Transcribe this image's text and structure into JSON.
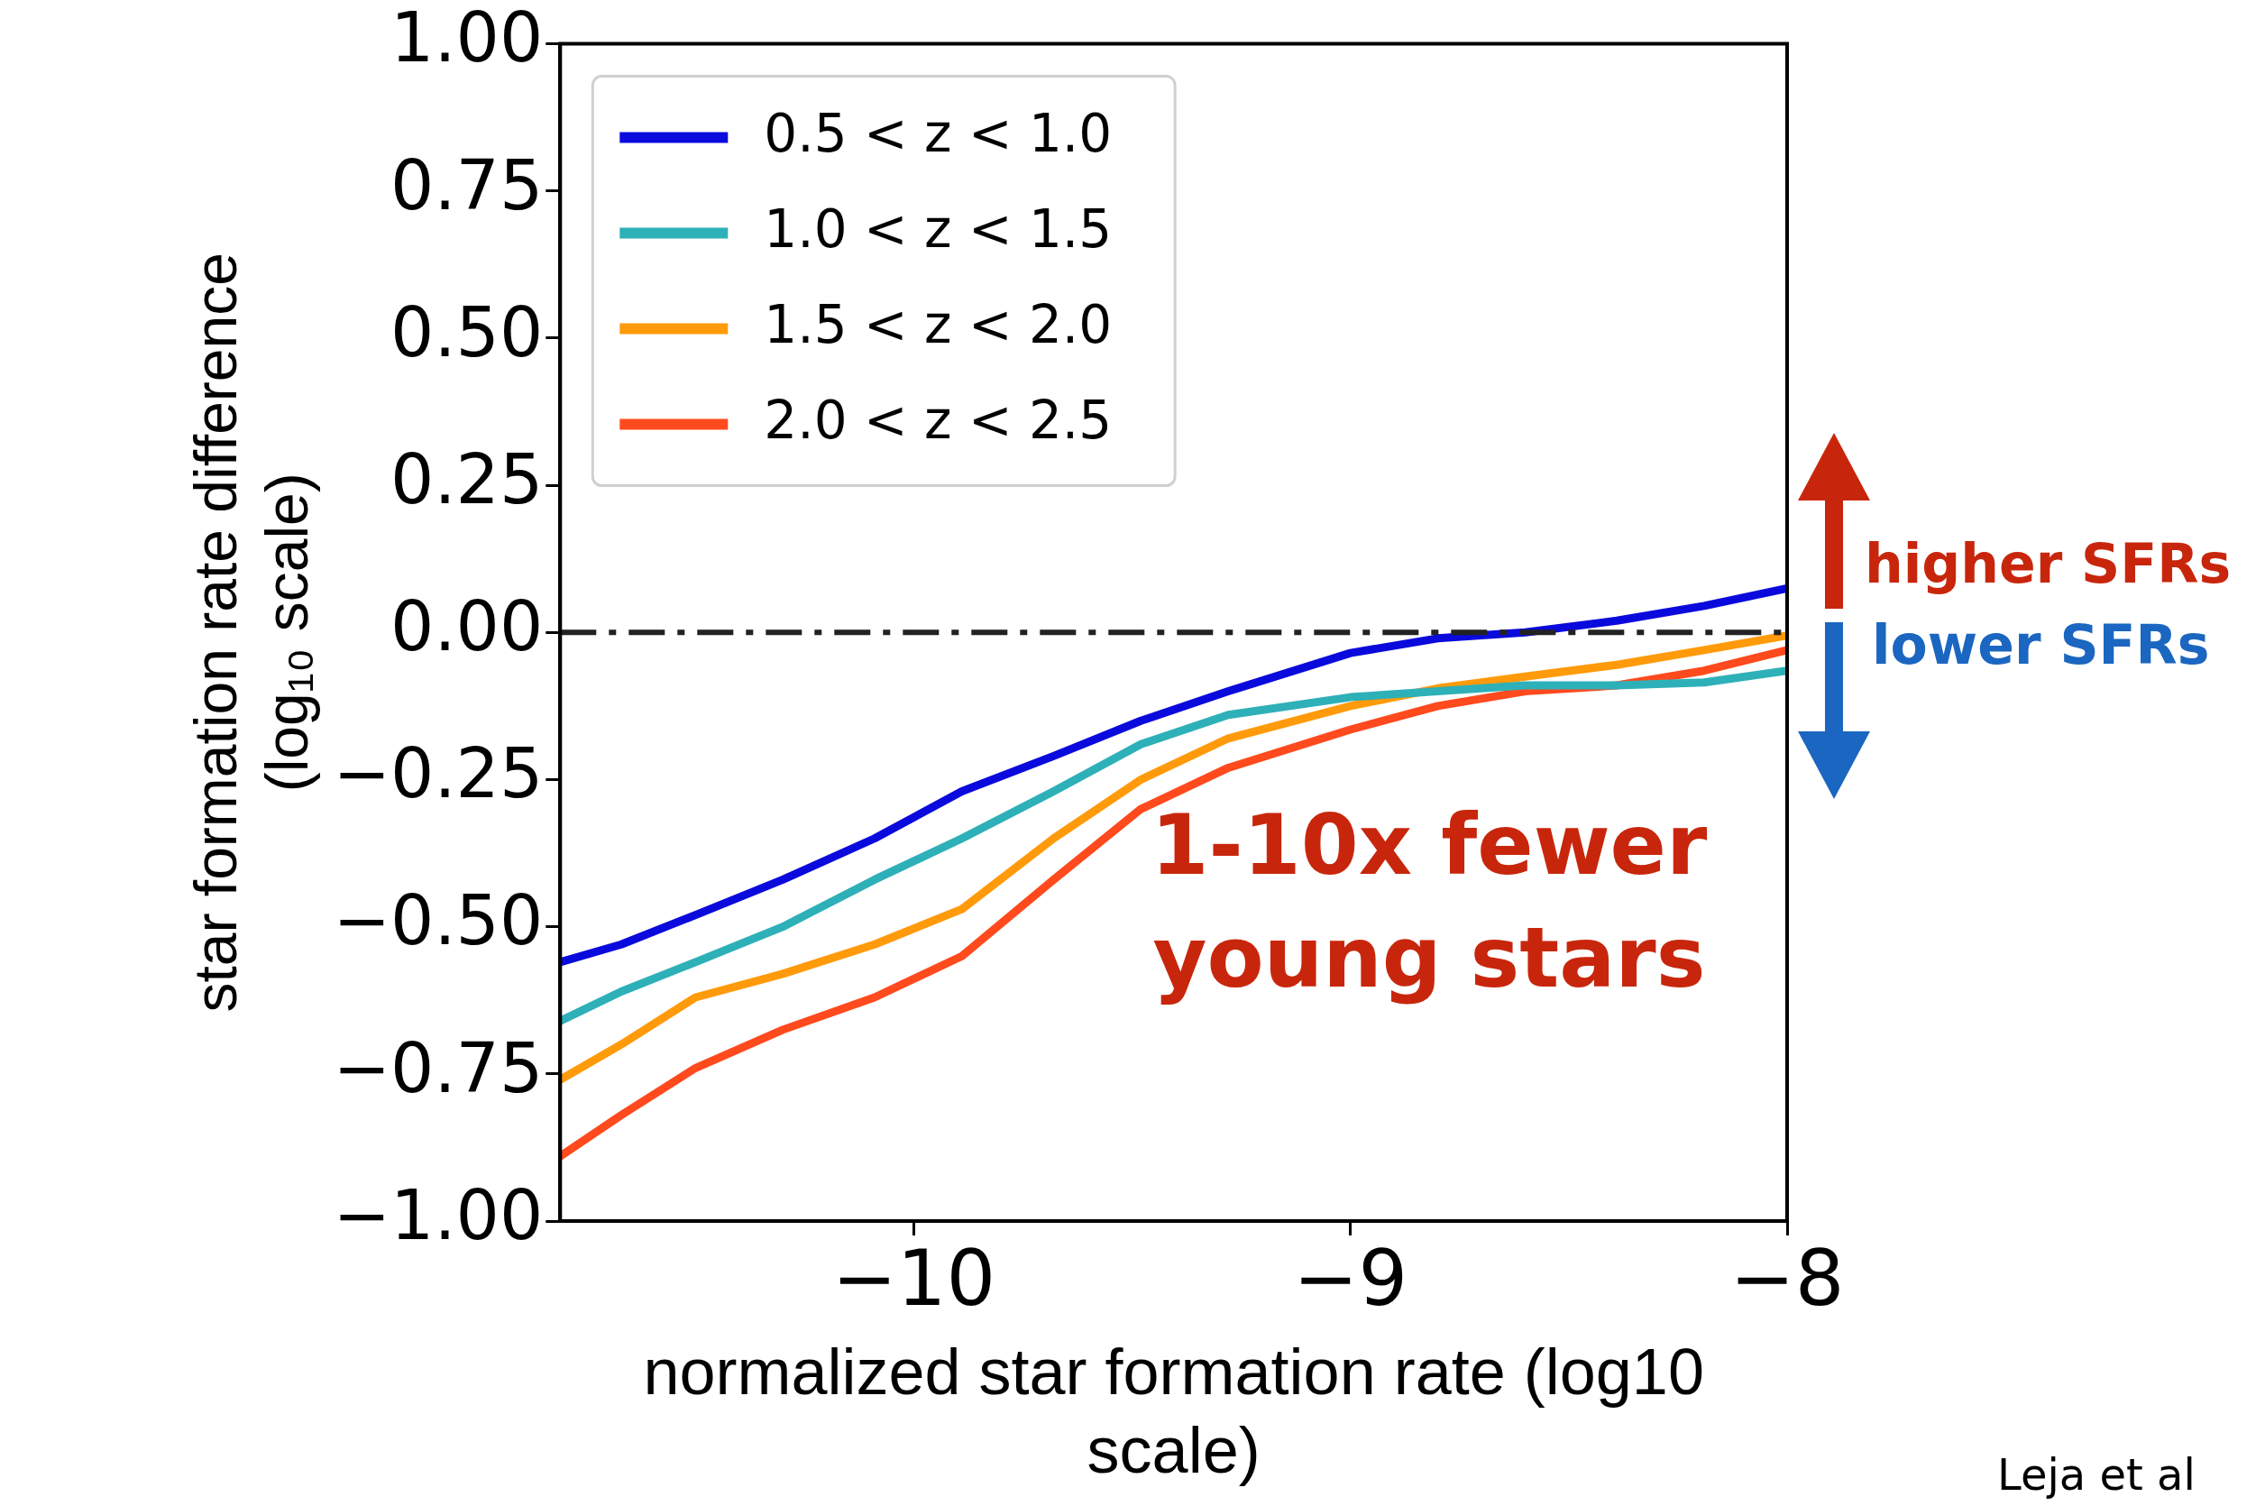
{
  "chart_data": {
    "type": "line",
    "xlabel": "normalized star formation rate (log10 scale)",
    "ylabel": "star formation rate difference (log₁₀ scale)",
    "x": [
      -10.81,
      -10.67,
      -10.5,
      -10.3,
      -10.09,
      -9.89,
      -9.68,
      -9.48,
      -9.28,
      -9,
      -8.8,
      -8.6,
      -8.39,
      -8.19,
      -8
    ],
    "series": [
      {
        "name": "0.5 < z < 1.0",
        "color": "#0a0adc",
        "values": [
          -0.56,
          -0.53,
          -0.48,
          -0.42,
          -0.35,
          -0.27,
          -0.21,
          -0.15,
          -0.1,
          -0.035,
          -0.01,
          0.0,
          0.02,
          0.045,
          0.075
        ]
      },
      {
        "name": "1.0 < z < 1.5",
        "color": "#2eb0b8",
        "values": [
          -0.66,
          -0.61,
          -0.56,
          -0.5,
          -0.42,
          -0.35,
          -0.27,
          -0.19,
          -0.14,
          -0.11,
          -0.1,
          -0.09,
          -0.09,
          -0.085,
          -0.065
        ]
      },
      {
        "name": "1.5 < z < 2.0",
        "color": "#ff9a0a",
        "values": [
          -0.76,
          -0.7,
          -0.62,
          -0.58,
          -0.53,
          -0.47,
          -0.35,
          -0.25,
          -0.18,
          -0.125,
          -0.095,
          -0.075,
          -0.055,
          -0.03,
          -0.005
        ]
      },
      {
        "name": "2.0 < z < 2.5",
        "color": "#ff4a1e",
        "values": [
          -0.89,
          -0.82,
          -0.74,
          -0.675,
          -0.62,
          -0.55,
          -0.42,
          -0.3,
          -0.23,
          -0.165,
          -0.125,
          -0.1,
          -0.09,
          -0.065,
          -0.03
        ]
      }
    ],
    "xlim": [
      -10.81,
      -8
    ],
    "xticks": [
      {
        "value": -10,
        "label": "−10"
      },
      {
        "value": -9,
        "label": "−9"
      },
      {
        "value": -8,
        "label": "−8"
      }
    ],
    "ylim": [
      -1,
      1
    ],
    "yticks": [
      {
        "value": -1,
        "label": "−1.00"
      },
      {
        "value": -0.75,
        "label": "−0.75"
      },
      {
        "value": -0.5,
        "label": "−0.50"
      },
      {
        "value": -0.25,
        "label": "−0.25"
      },
      {
        "value": 0,
        "label": "0.00"
      },
      {
        "value": 0.25,
        "label": "0.25"
      },
      {
        "value": 0.5,
        "label": "0.50"
      },
      {
        "value": 0.75,
        "label": "0.75"
      },
      {
        "value": 1,
        "label": "1.00"
      }
    ],
    "ref_lines": [
      {
        "axis": "y",
        "value": 0,
        "color": "#222222",
        "line_style": "dashed"
      }
    ],
    "annotations": [
      "higher SFRs",
      "lower SFRs",
      "1-10x fewer young stars",
      "Leja et al"
    ],
    "grid": false,
    "legend": "top left",
    "marker": "none",
    "line_style": "solid"
  }
}
